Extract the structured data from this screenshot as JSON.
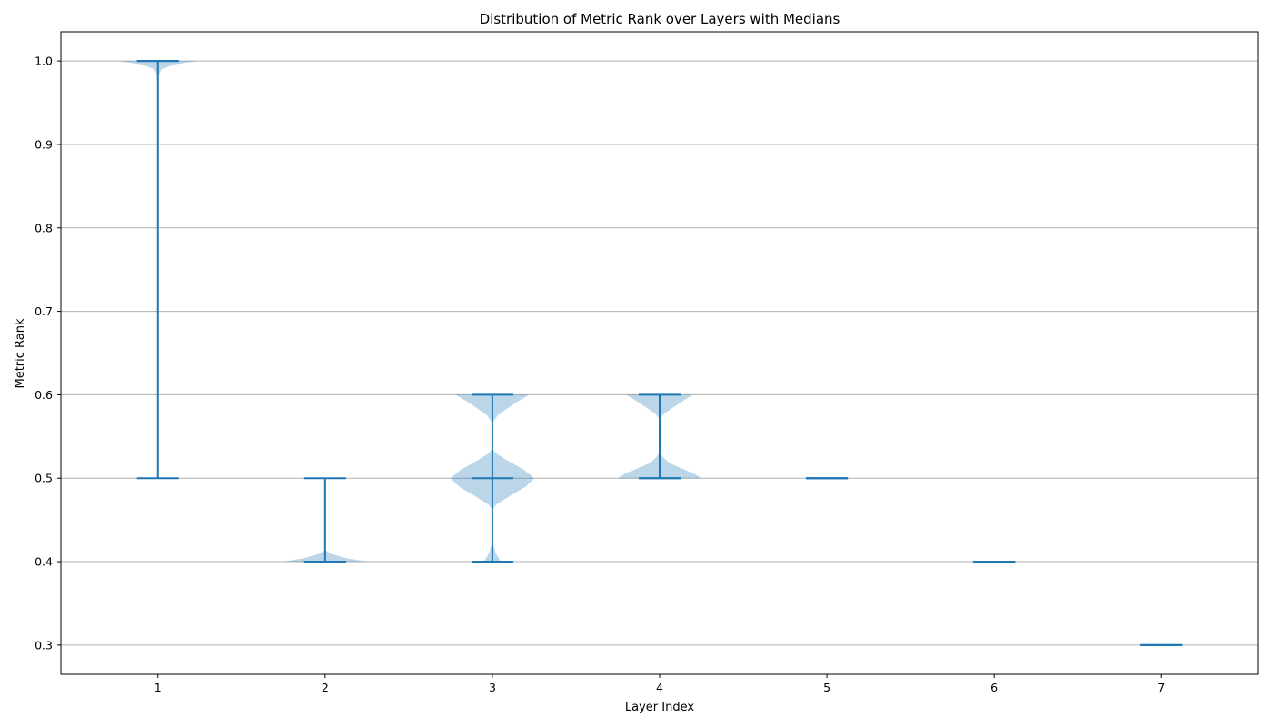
{
  "chart_data": {
    "type": "violin",
    "title": "Distribution of Metric Rank over Layers with Medians",
    "xlabel": "Layer Index",
    "ylabel": "Metric Rank",
    "categories": [
      1,
      2,
      3,
      4,
      5,
      6,
      7
    ],
    "x_ticks": [
      "1",
      "2",
      "3",
      "4",
      "5",
      "6",
      "7"
    ],
    "y_ticks": [
      "0.3",
      "0.4",
      "0.5",
      "0.6",
      "0.7",
      "0.8",
      "0.9",
      "1.0"
    ],
    "ylim": [
      0.265,
      1.035
    ],
    "xlim": [
      0.42,
      7.58
    ],
    "grid": "y",
    "color": "#1f77b4",
    "violins": [
      {
        "layer": 1,
        "min": 0.5,
        "max": 1.0,
        "median": 1.0,
        "density": [
          [
            0.98,
            0.0
          ],
          [
            0.99,
            0.02
          ],
          [
            0.996,
            0.1
          ],
          [
            1.0,
            0.24
          ]
        ]
      },
      {
        "layer": 2,
        "min": 0.4,
        "max": 0.5,
        "median": 0.4,
        "density": [
          [
            0.4,
            0.25
          ],
          [
            0.404,
            0.13
          ],
          [
            0.409,
            0.04
          ],
          [
            0.414,
            0.0
          ]
        ]
      },
      {
        "layer": 3,
        "min": 0.4,
        "max": 0.6,
        "median": 0.5,
        "density": [
          [
            0.4,
            0.05
          ],
          [
            0.41,
            0.02
          ],
          [
            0.42,
            0.006
          ],
          [
            0.43,
            0.0
          ],
          [
            0.462,
            0.0
          ],
          [
            0.468,
            0.02
          ],
          [
            0.478,
            0.1
          ],
          [
            0.49,
            0.2
          ],
          [
            0.5,
            0.25
          ],
          [
            0.51,
            0.19
          ],
          [
            0.52,
            0.1
          ],
          [
            0.53,
            0.02
          ],
          [
            0.536,
            0.0
          ],
          [
            0.566,
            0.0
          ],
          [
            0.575,
            0.03
          ],
          [
            0.585,
            0.1
          ],
          [
            0.593,
            0.16
          ],
          [
            0.6,
            0.22
          ]
        ]
      },
      {
        "layer": 4,
        "min": 0.5,
        "max": 0.6,
        "median": 0.5,
        "density": [
          [
            0.5,
            0.25
          ],
          [
            0.505,
            0.21
          ],
          [
            0.511,
            0.14
          ],
          [
            0.518,
            0.06
          ],
          [
            0.525,
            0.02
          ],
          [
            0.531,
            0.0
          ],
          [
            0.571,
            0.0
          ],
          [
            0.578,
            0.03
          ],
          [
            0.586,
            0.09
          ],
          [
            0.594,
            0.15
          ],
          [
            0.6,
            0.2
          ]
        ]
      },
      {
        "layer": 5,
        "min": 0.5,
        "max": 0.5,
        "median": 0.5,
        "density": []
      },
      {
        "layer": 6,
        "min": 0.4,
        "max": 0.4,
        "median": 0.4,
        "density": []
      },
      {
        "layer": 7,
        "min": 0.3,
        "max": 0.3,
        "median": 0.3,
        "density": []
      }
    ]
  }
}
